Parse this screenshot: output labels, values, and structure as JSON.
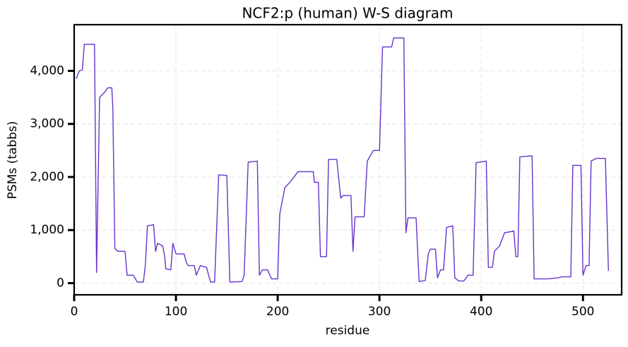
{
  "chart_data": {
    "type": "line",
    "title": "NCF2:p (human) W-S diagram",
    "xlabel": "residue",
    "ylabel": "PSMs (tabbs)",
    "x": [
      2,
      5,
      8,
      10,
      20,
      22,
      25,
      30,
      33,
      37,
      38,
      40,
      43,
      50,
      52,
      58,
      62,
      68,
      70,
      72,
      78,
      80,
      82,
      87,
      89,
      90,
      95,
      97,
      100,
      108,
      110,
      112,
      118,
      120,
      124,
      130,
      134,
      138,
      142,
      150,
      153,
      165,
      167,
      171,
      180,
      182,
      185,
      190,
      194,
      200,
      202,
      207,
      212,
      220,
      235,
      236,
      240,
      242,
      248,
      250,
      258,
      262,
      264,
      272,
      274,
      276,
      285,
      288,
      294,
      300,
      303,
      312,
      314,
      324,
      326,
      328,
      336,
      339,
      345,
      348,
      350,
      355,
      357,
      360,
      363,
      366,
      372,
      374,
      378,
      383,
      387,
      392,
      395,
      405,
      407,
      411,
      413,
      418,
      423,
      432,
      434,
      436,
      438,
      450,
      452,
      465,
      475,
      480,
      488,
      490,
      498,
      500,
      503,
      506,
      508,
      513,
      522,
      525
    ],
    "series": [
      {
        "name": "PSMs",
        "color": "#6633cc",
        "values": [
          3850,
          4000,
          4020,
          4500,
          4500,
          200,
          3500,
          3600,
          3680,
          3680,
          3300,
          650,
          600,
          600,
          150,
          150,
          20,
          20,
          350,
          1080,
          1100,
          600,
          750,
          700,
          500,
          270,
          250,
          750,
          550,
          550,
          400,
          330,
          330,
          150,
          330,
          300,
          20,
          20,
          2040,
          2030,
          20,
          30,
          150,
          2280,
          2300,
          150,
          250,
          250,
          80,
          80,
          1300,
          1800,
          1900,
          2100,
          2100,
          1900,
          1900,
          500,
          500,
          2330,
          2330,
          1600,
          1650,
          1650,
          600,
          1250,
          1250,
          2300,
          2500,
          2500,
          4450,
          4450,
          4620,
          4620,
          950,
          1230,
          1230,
          30,
          50,
          550,
          640,
          640,
          100,
          250,
          250,
          1050,
          1080,
          100,
          40,
          40,
          150,
          150,
          2270,
          2300,
          300,
          300,
          600,
          700,
          950,
          980,
          500,
          500,
          2380,
          2400,
          80,
          80,
          100,
          120,
          120,
          2220,
          2220,
          150,
          330,
          330,
          2300,
          2350,
          2350,
          230
        ]
      }
    ],
    "xlim": [
      0,
      538
    ],
    "ylim": [
      -220,
      4870
    ],
    "xticks": [
      0,
      100,
      200,
      300,
      400,
      500
    ],
    "yticks": [
      0,
      {
        "value": 1000,
        "label": "1,000"
      },
      {
        "value": 2000,
        "label": "2,000"
      },
      {
        "value": 3000,
        "label": "3,000"
      },
      {
        "value": 4000,
        "label": "4,000"
      }
    ],
    "grid": true
  }
}
